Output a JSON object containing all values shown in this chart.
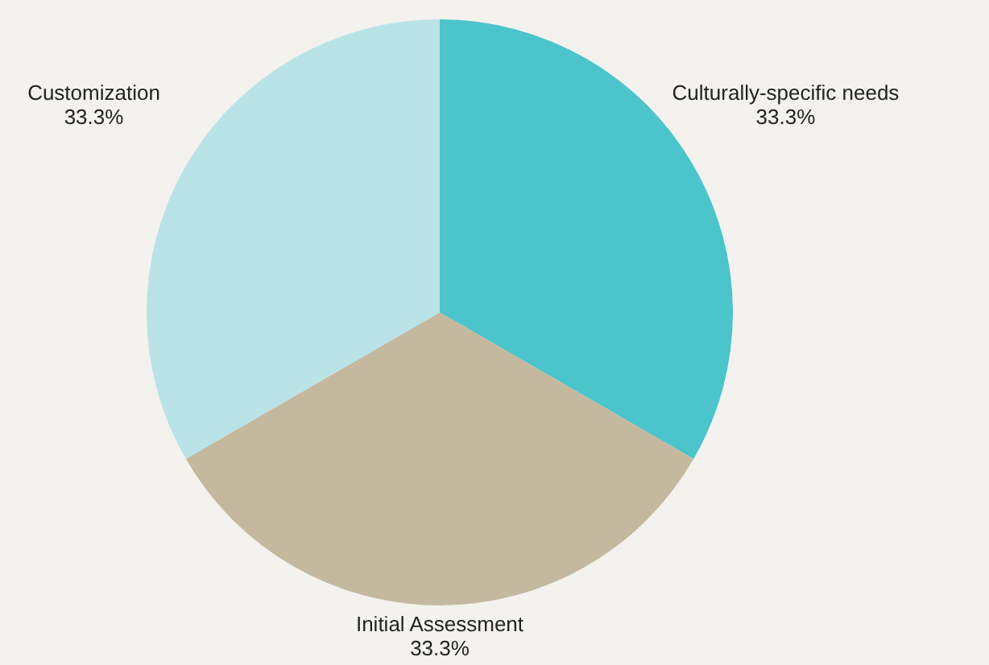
{
  "chart_data": {
    "type": "pie",
    "categories": [
      "Culturally-specific needs",
      "Initial Assessment",
      "Customization"
    ],
    "values": [
      33.3,
      33.3,
      33.3
    ],
    "colors": [
      "#4bc4cb",
      "#c4b89e",
      "#bae3e8"
    ],
    "value_labels": [
      "33.3%",
      "33.3%",
      "33.3%"
    ],
    "legend": false
  }
}
